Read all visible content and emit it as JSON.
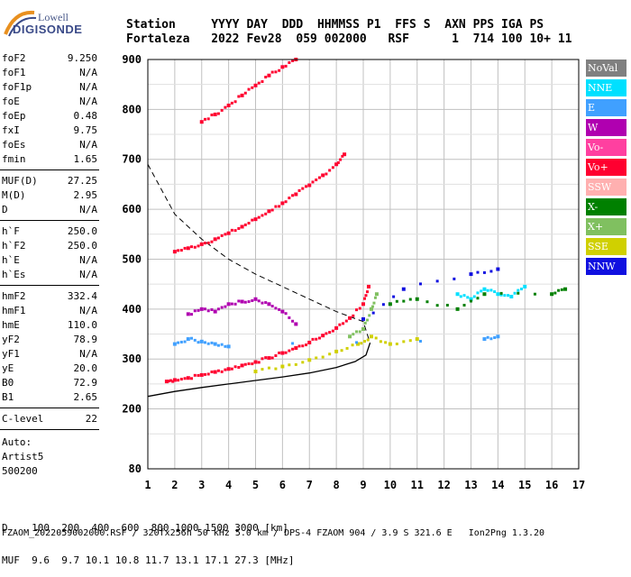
{
  "logo": {
    "line1": "Lowell",
    "line2": "DIGISONDE"
  },
  "header": {
    "labels": [
      "Station",
      "YYYY",
      "DAY",
      "DDD",
      "HHMMSS",
      "P1",
      "FFS",
      "S",
      "AXN",
      "PPS",
      "IGA",
      "PS"
    ],
    "values": [
      "Fortaleza",
      "2022",
      "Fev28",
      "059",
      "002000",
      "RSF",
      "1",
      "714",
      "100",
      "10+",
      "11"
    ]
  },
  "params": [
    {
      "label": "foF2",
      "value": "9.250"
    },
    {
      "label": "foF1",
      "value": "N/A"
    },
    {
      "label": "foF1p",
      "value": "N/A"
    },
    {
      "label": "foE",
      "value": "N/A"
    },
    {
      "label": "foEp",
      "value": "0.48"
    },
    {
      "label": "fxI",
      "value": "9.75"
    },
    {
      "label": "foEs",
      "value": "N/A"
    },
    {
      "label": "fmin",
      "value": "1.65"
    },
    {
      "label": "MUF(D)",
      "value": "27.25"
    },
    {
      "label": "M(D)",
      "value": "2.95"
    },
    {
      "label": "D",
      "value": "N/A"
    },
    {
      "label": "h`F",
      "value": "250.0"
    },
    {
      "label": "h`F2",
      "value": "250.0"
    },
    {
      "label": "h`E",
      "value": "N/A"
    },
    {
      "label": "h`Es",
      "value": "N/A"
    },
    {
      "label": "hmF2",
      "value": "332.4"
    },
    {
      "label": "hmF1",
      "value": "N/A"
    },
    {
      "label": "hmE",
      "value": "110.0"
    },
    {
      "label": "yF2",
      "value": "78.9"
    },
    {
      "label": "yF1",
      "value": "N/A"
    },
    {
      "label": "yE",
      "value": "20.0"
    },
    {
      "label": "B0",
      "value": "72.9"
    },
    {
      "label": "B1",
      "value": "2.65"
    },
    {
      "label": "C-level",
      "value": "22"
    }
  ],
  "auto": {
    "line1": "Auto:",
    "line2": "Artist5",
    "line3": "500200"
  },
  "bottom": {
    "d_label": "D",
    "d_values": "100  200  400  600  800 1000 1500 3000 [km]",
    "muf_label": "MUF",
    "muf_values": "9.6  9.7 10.1 10.8 11.7 13.1 17.1 27.3 [MHz]"
  },
  "footer": "FZAOM_2022059002000.RSF / 320fx256h 50 kHz 5.0 km / DPS-4 FZAOM 904 / 3.9 S 321.6 E   Ion2Png 1.3.20",
  "legend": [
    {
      "label": "NoVal",
      "color": "#808080"
    },
    {
      "label": "NNE",
      "color": "#00e0ff"
    },
    {
      "label": "E",
      "color": "#40a0ff"
    },
    {
      "label": "W",
      "color": "#b000b0"
    },
    {
      "label": "Vo-",
      "color": "#ff40a0"
    },
    {
      "label": "Vo+",
      "color": "#ff0030"
    },
    {
      "label": "SSW",
      "color": "#ffb0b0"
    },
    {
      "label": "X-",
      "color": "#008000"
    },
    {
      "label": "X+",
      "color": "#80c060"
    },
    {
      "label": "SSE",
      "color": "#d0d000"
    },
    {
      "label": "NNW",
      "color": "#1010e0"
    }
  ],
  "chart_data": {
    "type": "scatter",
    "xlim": [
      1,
      17
    ],
    "ylim": [
      80,
      900
    ],
    "x_ticks": [
      1,
      2,
      3,
      4,
      5,
      6,
      7,
      8,
      9,
      10,
      11,
      12,
      13,
      14,
      15,
      16,
      17
    ],
    "y_ticks": [
      80,
      200,
      300,
      400,
      500,
      600,
      700,
      800,
      900
    ],
    "grid": true,
    "series": [
      {
        "name": "Vo+",
        "color": "#ff0030",
        "points": [
          [
            1.7,
            255
          ],
          [
            2,
            258
          ],
          [
            2.5,
            262
          ],
          [
            3,
            268
          ],
          [
            3.5,
            274
          ],
          [
            4,
            280
          ],
          [
            4.5,
            287
          ],
          [
            5,
            294
          ],
          [
            5.5,
            302
          ],
          [
            6,
            312
          ],
          [
            6.5,
            322
          ],
          [
            7,
            333
          ],
          [
            7.5,
            347
          ],
          [
            8,
            362
          ],
          [
            8.5,
            382
          ],
          [
            9,
            410
          ],
          [
            9.2,
            445
          ]
        ]
      },
      {
        "name": "Vo+ second hop",
        "color": "#ff0030",
        "points": [
          [
            2,
            515
          ],
          [
            2.5,
            522
          ],
          [
            3,
            530
          ],
          [
            3.5,
            540
          ],
          [
            4,
            552
          ],
          [
            4.5,
            565
          ],
          [
            5,
            580
          ],
          [
            5.5,
            596
          ],
          [
            6,
            612
          ],
          [
            6.5,
            630
          ],
          [
            7,
            648
          ],
          [
            7.5,
            668
          ],
          [
            8,
            690
          ],
          [
            8.3,
            710
          ]
        ]
      },
      {
        "name": "Vo+ third hop",
        "color": "#ff0030",
        "points": [
          [
            3,
            775
          ],
          [
            3.5,
            790
          ],
          [
            4,
            808
          ],
          [
            4.5,
            828
          ],
          [
            5,
            848
          ],
          [
            5.5,
            868
          ],
          [
            6,
            885
          ],
          [
            6.5,
            900
          ]
        ]
      },
      {
        "name": "X+",
        "color": "#80c060",
        "points": [
          [
            8.5,
            345
          ],
          [
            9,
            360
          ],
          [
            9.3,
            400
          ],
          [
            9.5,
            430
          ]
        ]
      },
      {
        "name": "SSE",
        "color": "#d0d000",
        "points": [
          [
            5,
            275
          ],
          [
            6,
            285
          ],
          [
            7,
            298
          ],
          [
            8,
            315
          ],
          [
            8.8,
            330
          ],
          [
            9.3,
            345
          ],
          [
            10,
            330
          ],
          [
            11,
            340
          ]
        ]
      },
      {
        "name": "W",
        "color": "#b000b0",
        "points": [
          [
            2.5,
            390
          ],
          [
            3,
            400
          ],
          [
            3.5,
            395
          ],
          [
            4,
            410
          ],
          [
            4.5,
            415
          ],
          [
            5,
            420
          ],
          [
            5.5,
            410
          ],
          [
            6,
            395
          ],
          [
            6.5,
            370
          ]
        ]
      },
      {
        "name": "NNE",
        "color": "#00e0ff",
        "points": [
          [
            12.5,
            430
          ],
          [
            13,
            420
          ],
          [
            13.5,
            440
          ],
          [
            14,
            430
          ],
          [
            14.5,
            425
          ],
          [
            15,
            445
          ]
        ]
      },
      {
        "name": "X-",
        "color": "#008000",
        "points": [
          [
            10,
            410
          ],
          [
            11,
            420
          ],
          [
            12.5,
            400
          ],
          [
            13.5,
            430
          ],
          [
            16,
            430
          ],
          [
            16.5,
            440
          ]
        ]
      },
      {
        "name": "NNW",
        "color": "#1010e0",
        "points": [
          [
            9,
            380
          ],
          [
            10.5,
            440
          ],
          [
            13,
            470
          ],
          [
            14,
            480
          ]
        ]
      },
      {
        "name": "E",
        "color": "#40a0ff",
        "points": [
          [
            2,
            330
          ],
          [
            2.5,
            340
          ],
          [
            3,
            335
          ],
          [
            3.5,
            330
          ],
          [
            4,
            325
          ],
          [
            13.5,
            340
          ],
          [
            14,
            345
          ]
        ]
      }
    ],
    "profile_curve": [
      [
        1,
        225
      ],
      [
        2,
        235
      ],
      [
        3,
        243
      ],
      [
        4,
        250
      ],
      [
        5,
        257
      ],
      [
        6,
        264
      ],
      [
        7,
        272
      ],
      [
        8,
        283
      ],
      [
        8.7,
        295
      ],
      [
        9.1,
        308
      ],
      [
        9.25,
        332
      ]
    ],
    "dashed_curve": [
      [
        1,
        690
      ],
      [
        2,
        590
      ],
      [
        3,
        540
      ],
      [
        4,
        500
      ],
      [
        5,
        470
      ],
      [
        6,
        445
      ],
      [
        7,
        420
      ],
      [
        8,
        395
      ],
      [
        9,
        375
      ],
      [
        9.25,
        332
      ]
    ]
  }
}
